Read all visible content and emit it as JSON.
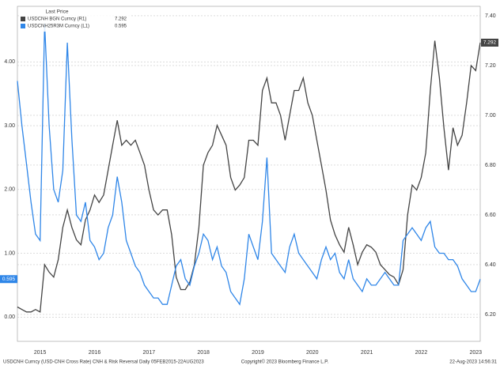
{
  "chart_data": {
    "type": "line",
    "legend_title": "Last Price",
    "categories": [
      null,
      null,
      null,
      null,
      null,
      "2015",
      null,
      null,
      null,
      null,
      null,
      null,
      null,
      null,
      null,
      null,
      null,
      "2016",
      null,
      null,
      null,
      null,
      null,
      null,
      null,
      null,
      null,
      null,
      null,
      "2017",
      null,
      null,
      null,
      null,
      null,
      null,
      null,
      null,
      null,
      null,
      null,
      "2018",
      null,
      null,
      null,
      null,
      null,
      null,
      null,
      null,
      null,
      null,
      null,
      "2019",
      null,
      null,
      null,
      null,
      null,
      null,
      null,
      null,
      null,
      null,
      null,
      "2020",
      null,
      null,
      null,
      null,
      null,
      null,
      null,
      null,
      null,
      null,
      null,
      "2021",
      null,
      null,
      null,
      null,
      null,
      null,
      null,
      null,
      null,
      null,
      null,
      "2022",
      null,
      null,
      null,
      null,
      null,
      null,
      null,
      null,
      null,
      null,
      null,
      "2023",
      null
    ],
    "series": [
      {
        "name": "USDCNH BGN Curncy (R1)",
        "last_value_label": "7.292",
        "color": "#444444",
        "axis": "y2",
        "values": [
          6.23,
          6.22,
          6.21,
          6.21,
          6.22,
          6.21,
          6.4,
          6.37,
          6.35,
          6.42,
          6.55,
          6.62,
          6.55,
          6.5,
          6.48,
          6.58,
          6.62,
          6.68,
          6.65,
          6.68,
          6.78,
          6.88,
          6.98,
          6.88,
          6.9,
          6.88,
          6.9,
          6.85,
          6.8,
          6.7,
          6.62,
          6.6,
          6.62,
          6.62,
          6.52,
          6.35,
          6.3,
          6.3,
          6.33,
          6.4,
          6.55,
          6.8,
          6.85,
          6.88,
          6.96,
          6.92,
          6.88,
          6.75,
          6.7,
          6.72,
          6.75,
          6.9,
          6.9,
          6.88,
          7.1,
          7.15,
          7.05,
          7.05,
          7.0,
          6.9,
          7.0,
          7.1,
          7.1,
          7.15,
          7.05,
          7.0,
          6.9,
          6.8,
          6.7,
          6.58,
          6.52,
          6.48,
          6.45,
          6.55,
          6.48,
          6.4,
          6.45,
          6.48,
          6.47,
          6.45,
          6.4,
          6.38,
          6.36,
          6.35,
          6.32,
          6.38,
          6.6,
          6.72,
          6.7,
          6.75,
          6.85,
          7.1,
          7.3,
          7.15,
          6.95,
          6.78,
          6.95,
          6.88,
          6.92,
          7.05,
          7.2,
          7.18,
          7.292
        ]
      },
      {
        "name": "USDCNH25R3M Curncy (L1)",
        "last_value_label": "0.595",
        "color": "#2f86e8",
        "values": [
          3.7,
          3.0,
          2.4,
          1.8,
          1.3,
          1.2,
          4.6,
          3.0,
          2.0,
          1.8,
          2.3,
          4.3,
          2.8,
          1.6,
          1.5,
          1.8,
          1.2,
          1.1,
          0.9,
          1.0,
          1.4,
          1.6,
          2.2,
          1.8,
          1.2,
          1.0,
          0.8,
          0.7,
          0.5,
          0.4,
          0.3,
          0.3,
          0.2,
          0.2,
          0.5,
          0.8,
          0.9,
          0.6,
          0.5,
          0.8,
          1.0,
          1.3,
          1.2,
          0.9,
          1.1,
          0.8,
          0.7,
          0.4,
          0.3,
          0.2,
          0.6,
          1.3,
          1.1,
          0.9,
          1.5,
          2.5,
          1.0,
          0.9,
          0.8,
          0.7,
          1.1,
          1.3,
          1.0,
          0.9,
          0.8,
          0.7,
          0.6,
          0.9,
          1.1,
          0.9,
          1.0,
          0.7,
          0.6,
          0.9,
          0.6,
          0.5,
          0.4,
          0.6,
          0.5,
          0.5,
          0.6,
          0.7,
          0.6,
          0.5,
          0.5,
          1.2,
          1.3,
          1.4,
          1.3,
          1.2,
          1.4,
          1.5,
          1.1,
          1.0,
          1.0,
          0.9,
          0.9,
          0.8,
          0.6,
          0.5,
          0.4,
          0.4,
          0.595
        ]
      }
    ],
    "ylim": [
      -0.38,
      4.87
    ],
    "yticks": [
      {
        "value": 0,
        "label": "0.00"
      },
      {
        "value": 1,
        "label": "1.00"
      },
      {
        "value": 2,
        "label": "2.00"
      },
      {
        "value": 3,
        "label": "3.00"
      },
      {
        "value": 4,
        "label": "4.00"
      }
    ],
    "y2lim": [
      6.092,
      7.438
    ],
    "y2ticks": [
      {
        "value": 6.2,
        "label": "6.20"
      },
      {
        "value": 6.4,
        "label": "6.40"
      },
      {
        "value": 6.6,
        "label": "6.60"
      },
      {
        "value": 6.8,
        "label": "6.80"
      },
      {
        "value": 7.0,
        "label": "7.00"
      },
      {
        "value": 7.2,
        "label": "7.20"
      },
      {
        "value": 7.4,
        "label": "7.40"
      }
    ],
    "grid": true,
    "legend": "upper left"
  },
  "footer": {
    "left": "USDCNH Curncy (USD-CNH Cross Rate) CNH & Risk Reversal  Daily 05FEB2015-22AUG2023",
    "center": "Copyright© 2023 Bloomberg Finance L.P.",
    "right": "22-Aug-2023 14:56:31"
  }
}
